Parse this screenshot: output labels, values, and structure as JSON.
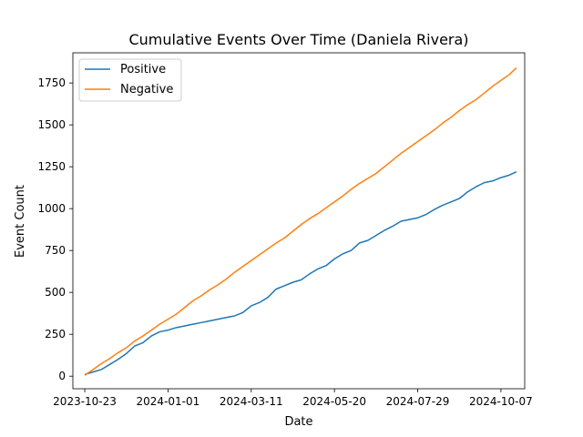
{
  "chart_data": {
    "type": "line",
    "title": "Cumulative Events Over Time (Daniela Rivera)",
    "xlabel": "Date",
    "ylabel": "Event Count",
    "xlim": [
      "2023-10-13",
      "2024-10-27"
    ],
    "ylim": [
      -75,
      1930
    ],
    "xticks": [
      "2023-10-23",
      "2024-01-01",
      "2024-03-11",
      "2024-05-20",
      "2024-07-29",
      "2024-10-07"
    ],
    "yticks": [
      0,
      250,
      500,
      750,
      1000,
      1250,
      1500,
      1750
    ],
    "grid": false,
    "legend_position": "upper left",
    "series": [
      {
        "name": "Positive",
        "color": "#1f77b4",
        "points": [
          [
            "2023-10-23",
            10
          ],
          [
            "2023-10-30",
            25
          ],
          [
            "2023-11-06",
            40
          ],
          [
            "2023-11-13",
            70
          ],
          [
            "2023-11-20",
            100
          ],
          [
            "2023-11-27",
            135
          ],
          [
            "2023-12-04",
            180
          ],
          [
            "2023-12-11",
            200
          ],
          [
            "2023-12-18",
            240
          ],
          [
            "2023-12-25",
            265
          ],
          [
            "2024-01-01",
            275
          ],
          [
            "2024-01-08",
            290
          ],
          [
            "2024-01-15",
            300
          ],
          [
            "2024-01-22",
            310
          ],
          [
            "2024-01-29",
            320
          ],
          [
            "2024-02-05",
            330
          ],
          [
            "2024-02-12",
            340
          ],
          [
            "2024-02-19",
            350
          ],
          [
            "2024-02-26",
            360
          ],
          [
            "2024-03-04",
            380
          ],
          [
            "2024-03-11",
            420
          ],
          [
            "2024-03-18",
            440
          ],
          [
            "2024-03-25",
            470
          ],
          [
            "2024-04-01",
            520
          ],
          [
            "2024-04-08",
            540
          ],
          [
            "2024-04-15",
            560
          ],
          [
            "2024-04-22",
            575
          ],
          [
            "2024-04-29",
            610
          ],
          [
            "2024-05-06",
            640
          ],
          [
            "2024-05-13",
            660
          ],
          [
            "2024-05-20",
            700
          ],
          [
            "2024-05-27",
            730
          ],
          [
            "2024-06-03",
            750
          ],
          [
            "2024-06-10",
            795
          ],
          [
            "2024-06-17",
            810
          ],
          [
            "2024-06-24",
            840
          ],
          [
            "2024-07-01",
            870
          ],
          [
            "2024-07-08",
            895
          ],
          [
            "2024-07-15",
            925
          ],
          [
            "2024-07-22",
            935
          ],
          [
            "2024-07-29",
            945
          ],
          [
            "2024-08-05",
            965
          ],
          [
            "2024-08-12",
            995
          ],
          [
            "2024-08-19",
            1020
          ],
          [
            "2024-08-26",
            1040
          ],
          [
            "2024-09-02",
            1060
          ],
          [
            "2024-09-09",
            1100
          ],
          [
            "2024-09-16",
            1130
          ],
          [
            "2024-09-23",
            1155
          ],
          [
            "2024-09-30",
            1165
          ],
          [
            "2024-10-07",
            1185
          ],
          [
            "2024-10-14",
            1200
          ],
          [
            "2024-10-20",
            1220
          ]
        ]
      },
      {
        "name": "Negative",
        "color": "#ff7f0e",
        "points": [
          [
            "2023-10-23",
            5
          ],
          [
            "2023-10-30",
            40
          ],
          [
            "2023-11-06",
            75
          ],
          [
            "2023-11-13",
            105
          ],
          [
            "2023-11-20",
            140
          ],
          [
            "2023-11-27",
            170
          ],
          [
            "2023-12-04",
            210
          ],
          [
            "2023-12-11",
            240
          ],
          [
            "2023-12-18",
            275
          ],
          [
            "2023-12-25",
            310
          ],
          [
            "2024-01-01",
            340
          ],
          [
            "2024-01-08",
            370
          ],
          [
            "2024-01-15",
            410
          ],
          [
            "2024-01-22",
            450
          ],
          [
            "2024-01-29",
            480
          ],
          [
            "2024-02-05",
            515
          ],
          [
            "2024-02-12",
            545
          ],
          [
            "2024-02-19",
            580
          ],
          [
            "2024-02-26",
            620
          ],
          [
            "2024-03-04",
            655
          ],
          [
            "2024-03-11",
            690
          ],
          [
            "2024-03-18",
            725
          ],
          [
            "2024-03-25",
            760
          ],
          [
            "2024-04-01",
            795
          ],
          [
            "2024-04-08",
            825
          ],
          [
            "2024-04-15",
            865
          ],
          [
            "2024-04-22",
            905
          ],
          [
            "2024-04-29",
            940
          ],
          [
            "2024-05-06",
            970
          ],
          [
            "2024-05-13",
            1005
          ],
          [
            "2024-05-20",
            1040
          ],
          [
            "2024-05-27",
            1075
          ],
          [
            "2024-06-03",
            1115
          ],
          [
            "2024-06-10",
            1150
          ],
          [
            "2024-06-17",
            1180
          ],
          [
            "2024-06-24",
            1210
          ],
          [
            "2024-07-01",
            1250
          ],
          [
            "2024-07-08",
            1290
          ],
          [
            "2024-07-15",
            1330
          ],
          [
            "2024-07-22",
            1365
          ],
          [
            "2024-07-29",
            1400
          ],
          [
            "2024-08-05",
            1435
          ],
          [
            "2024-08-12",
            1470
          ],
          [
            "2024-08-19",
            1510
          ],
          [
            "2024-08-26",
            1545
          ],
          [
            "2024-09-02",
            1585
          ],
          [
            "2024-09-09",
            1620
          ],
          [
            "2024-09-16",
            1650
          ],
          [
            "2024-09-23",
            1690
          ],
          [
            "2024-09-30",
            1730
          ],
          [
            "2024-10-07",
            1765
          ],
          [
            "2024-10-14",
            1800
          ],
          [
            "2024-10-20",
            1840
          ]
        ]
      }
    ]
  }
}
